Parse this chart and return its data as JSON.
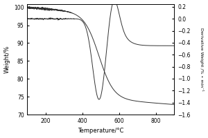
{
  "xlabel": "Temperature/°C",
  "ylabel_left": "Weight/%",
  "ylabel_right": "Derivative Weight /% • min⁻¹",
  "xlim": [
    100,
    900
  ],
  "ylim_left": [
    70,
    101
  ],
  "ylim_right": [
    -1.6,
    0.25
  ],
  "xticks": [
    200,
    400,
    600,
    800
  ],
  "yticks_left": [
    70,
    75,
    80,
    85,
    90,
    95,
    100
  ],
  "yticks_right": [
    0.2,
    0.0,
    -0.2,
    -0.4,
    -0.6,
    -0.8,
    -1.0,
    -1.2,
    -1.4,
    -1.6
  ],
  "line_color": "#333333",
  "bg_color": "#ffffff"
}
